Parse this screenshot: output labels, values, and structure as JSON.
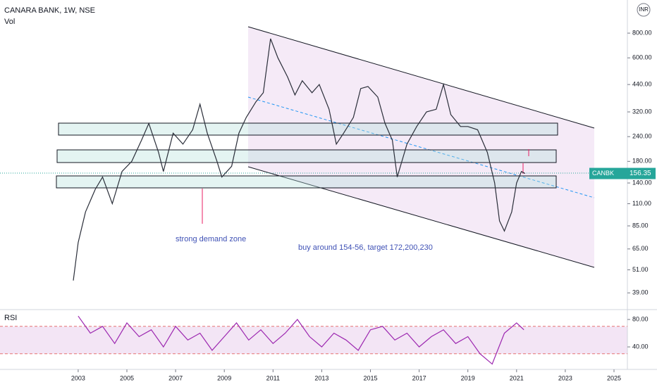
{
  "chart_data": [
    {
      "type": "line",
      "title": "CANARA BANK, 1W, NSE",
      "subtitle": "Vol",
      "currency": "INR",
      "log_scale": true,
      "color": "#2a2e39",
      "xlim": [
        1999.79,
        2025.55
      ],
      "ylim": [
        32.9,
        1176
      ],
      "xticks": [
        2003,
        2005,
        2007,
        2009,
        2011,
        2013,
        2015,
        2017,
        2019,
        2021,
        2023,
        2025
      ],
      "yticks": [
        {
          "value": 39,
          "label": "39.00"
        },
        {
          "value": 51,
          "label": "51.00"
        },
        {
          "value": 65,
          "label": "65.00"
        },
        {
          "value": 85,
          "label": "85.00"
        },
        {
          "value": 110,
          "label": "110.00"
        },
        {
          "value": 140,
          "label": "140.00"
        },
        {
          "value": 180,
          "label": "180.00"
        },
        {
          "value": 240,
          "label": "240.00"
        },
        {
          "value": 320,
          "label": "320.00"
        },
        {
          "value": 440,
          "label": "440.00"
        },
        {
          "value": 600,
          "label": "600.00"
        },
        {
          "value": 800,
          "label": "800.00"
        }
      ],
      "annotations": [
        "strong demand zone",
        "buy around 154-56, target 172,200,230"
      ],
      "series": [
        {
          "name": "CANBK",
          "color": "#26a69a",
          "x": [
            2002.8,
            2003.0,
            2003.3,
            2003.7,
            2004.0,
            2004.4,
            2004.8,
            2005.2,
            2005.6,
            2005.9,
            2006.3,
            2006.5,
            2006.9,
            2007.3,
            2007.7,
            2008.0,
            2008.3,
            2008.7,
            2008.9,
            2009.3,
            2009.6,
            2009.9,
            2010.3,
            2010.6,
            2010.9,
            2011.2,
            2011.6,
            2011.9,
            2012.2,
            2012.6,
            2012.9,
            2013.3,
            2013.6,
            2013.9,
            2014.3,
            2014.6,
            2014.9,
            2015.3,
            2015.6,
            2015.9,
            2016.1,
            2016.5,
            2016.9,
            2017.3,
            2017.7,
            2018.0,
            2018.3,
            2018.7,
            2019.0,
            2019.4,
            2019.8,
            2020.1,
            2020.3,
            2020.5,
            2020.8,
            2021.0,
            2021.2,
            2021.35
          ],
          "values": [
            45,
            70,
            100,
            130,
            150,
            110,
            160,
            180,
            230,
            280,
            200,
            160,
            250,
            220,
            260,
            350,
            250,
            180,
            150,
            170,
            250,
            300,
            360,
            400,
            750,
            600,
            480,
            390,
            460,
            400,
            440,
            330,
            220,
            250,
            300,
            420,
            430,
            380,
            280,
            230,
            150,
            220,
            270,
            320,
            330,
            440,
            310,
            270,
            270,
            260,
            200,
            140,
            90,
            80,
            100,
            140,
            160,
            156.35
          ]
        }
      ]
    },
    {
      "type": "line",
      "title": "RSI",
      "color": "#9c27b0",
      "xlim": [
        1999.79,
        2025.55
      ],
      "ylim": [
        7.2,
        94.4
      ],
      "yticks": [
        {
          "value": 40,
          "label": "40.00"
        },
        {
          "value": 80,
          "label": "80.00"
        }
      ],
      "bands": [
        30,
        70
      ],
      "series": [
        {
          "name": "RSI",
          "color": "#9c27b0",
          "x": [
            2003.0,
            2003.5,
            2004.0,
            2004.5,
            2005.0,
            2005.5,
            2006.0,
            2006.5,
            2007.0,
            2007.5,
            2008.0,
            2008.5,
            2009.0,
            2009.5,
            2010.0,
            2010.5,
            2011.0,
            2011.5,
            2012.0,
            2012.5,
            2013.0,
            2013.5,
            2014.0,
            2014.5,
            2015.0,
            2015.5,
            2016.0,
            2016.5,
            2017.0,
            2017.5,
            2018.0,
            2018.5,
            2019.0,
            2019.5,
            2020.0,
            2020.5,
            2021.0,
            2021.3
          ],
          "values": [
            85,
            60,
            70,
            45,
            75,
            55,
            65,
            40,
            70,
            50,
            60,
            35,
            55,
            75,
            50,
            65,
            45,
            60,
            80,
            55,
            40,
            60,
            50,
            35,
            65,
            70,
            50,
            60,
            40,
            55,
            65,
            45,
            55,
            30,
            15,
            60,
            75,
            65
          ]
        }
      ]
    }
  ]
}
